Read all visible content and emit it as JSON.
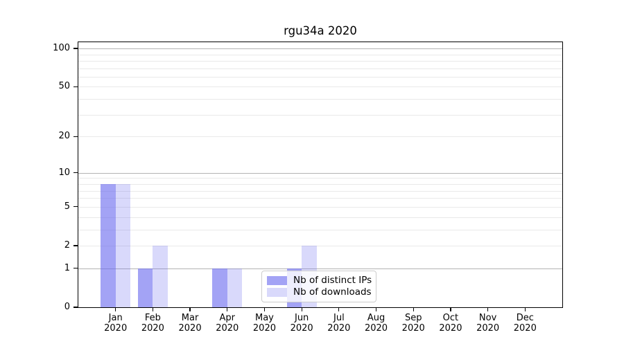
{
  "chart_data": {
    "type": "bar",
    "title": "rgu34a 2020",
    "categories": [
      "Jan",
      "Feb",
      "Mar",
      "Apr",
      "May",
      "Jun",
      "Jul",
      "Aug",
      "Sep",
      "Oct",
      "Nov",
      "Dec"
    ],
    "year_label": "2020",
    "series": [
      {
        "name": "Nb of distinct IPs",
        "color": "rgba(102,102,238,0.6)",
        "color_hex_on_white": "#a2a2f2",
        "values": [
          8,
          1,
          0,
          1,
          0,
          1,
          0,
          0,
          0,
          0,
          0,
          0
        ]
      },
      {
        "name": "Nb of downloads",
        "color": "rgba(102,102,238,0.25)",
        "color_hex_on_white": "#d8d8f8",
        "values": [
          8,
          2,
          0,
          1,
          0,
          2,
          0,
          0,
          0,
          0,
          0,
          0
        ]
      }
    ],
    "scale": "log1p",
    "ylim": [
      0,
      112
    ],
    "yticks": [
      0,
      1,
      2,
      5,
      10,
      20,
      50,
      100
    ],
    "grid_major": [
      1,
      10,
      100
    ],
    "grid_minor": [
      2,
      3,
      4,
      5,
      6,
      7,
      8,
      9,
      20,
      30,
      40,
      50,
      60,
      70,
      80,
      90
    ],
    "grid_on": true,
    "legend_position": "lower center",
    "colors": {
      "grid_major": "#b3b3b3",
      "grid_minor": "#e9e9e9",
      "spine": "#000000",
      "text": "#000000",
      "background": "#ffffff"
    }
  }
}
